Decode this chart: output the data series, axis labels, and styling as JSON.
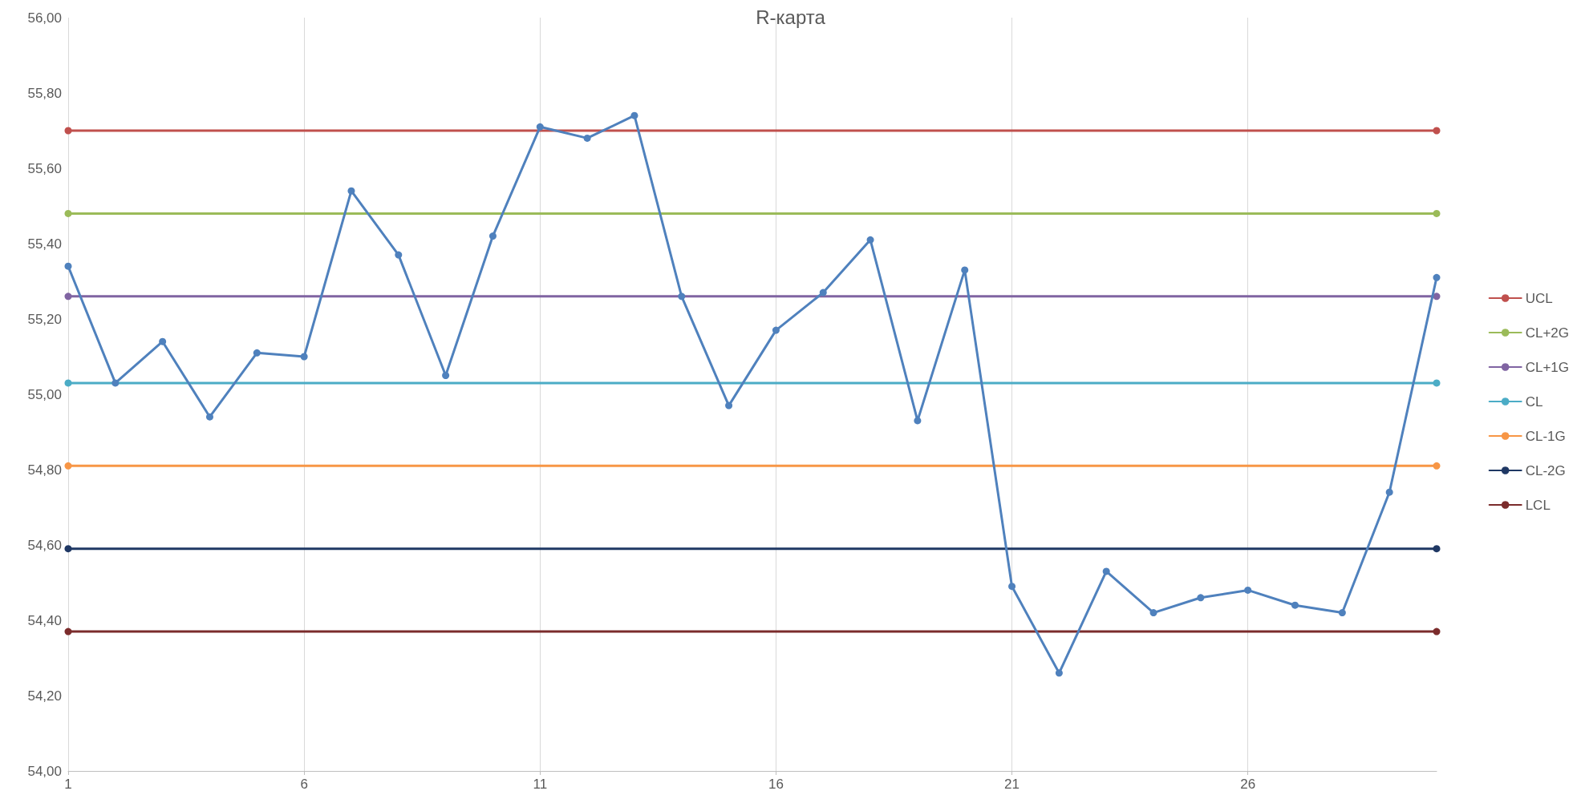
{
  "chart_data": {
    "type": "line",
    "title": "R-карта",
    "xlim": [
      1,
      30
    ],
    "xticks": [
      1,
      6,
      11,
      16,
      21,
      26
    ],
    "ylim": [
      54,
      56
    ],
    "yticks": [
      {
        "value": 54,
        "label": "54,00"
      },
      {
        "value": 54.2,
        "label": "54,20"
      },
      {
        "value": 54.4,
        "label": "54,40"
      },
      {
        "value": 54.6,
        "label": "54,60"
      },
      {
        "value": 54.8,
        "label": "54,80"
      },
      {
        "value": 55,
        "label": "55,00"
      },
      {
        "value": 55.2,
        "label": "55,20"
      },
      {
        "value": 55.4,
        "label": "55,40"
      },
      {
        "value": 55.6,
        "label": "55,60"
      },
      {
        "value": 55.8,
        "label": "55,80"
      },
      {
        "value": 56,
        "label": "56,00"
      }
    ],
    "grid": "x",
    "legend": "right",
    "marker": "circle",
    "line_style": "solid",
    "series": [
      {
        "color": "#4f81bd",
        "x": [
          1,
          2,
          3,
          4,
          5,
          6,
          7,
          8,
          9,
          10,
          11,
          12,
          13,
          14,
          15,
          16,
          17,
          18,
          19,
          20,
          21,
          22,
          23,
          24,
          25,
          26,
          27,
          28,
          29,
          30
        ],
        "values": [
          55.34,
          55.03,
          55.14,
          54.94,
          55.11,
          55.1,
          55.54,
          55.37,
          55.05,
          55.42,
          55.71,
          55.68,
          55.74,
          55.26,
          54.97,
          55.17,
          55.27,
          55.41,
          54.93,
          55.33,
          54.49,
          54.26,
          54.53,
          54.42,
          54.46,
          54.48,
          54.44,
          54.42,
          54.74,
          55.31
        ]
      },
      {
        "name": "UCL",
        "color": "#c0504d",
        "x": [
          1,
          30
        ],
        "values": [
          55.7,
          55.7
        ]
      },
      {
        "name": "CL+2G",
        "color": "#9bbb59",
        "x": [
          1,
          30
        ],
        "values": [
          55.48,
          55.48
        ]
      },
      {
        "name": "CL+1G",
        "color": "#8064a2",
        "x": [
          1,
          30
        ],
        "values": [
          55.26,
          55.26
        ]
      },
      {
        "name": "CL",
        "color": "#4bacc6",
        "x": [
          1,
          30
        ],
        "values": [
          55.03,
          55.03
        ]
      },
      {
        "name": "CL-1G",
        "color": "#f79646",
        "x": [
          1,
          30
        ],
        "values": [
          54.81,
          54.81
        ]
      },
      {
        "name": "CL-2G",
        "color": "#1f3864",
        "x": [
          1,
          30
        ],
        "values": [
          54.59,
          54.59
        ]
      },
      {
        "name": "LCL",
        "color": "#7b2c2c",
        "x": [
          1,
          30
        ],
        "values": [
          54.37,
          54.37
        ]
      }
    ]
  }
}
